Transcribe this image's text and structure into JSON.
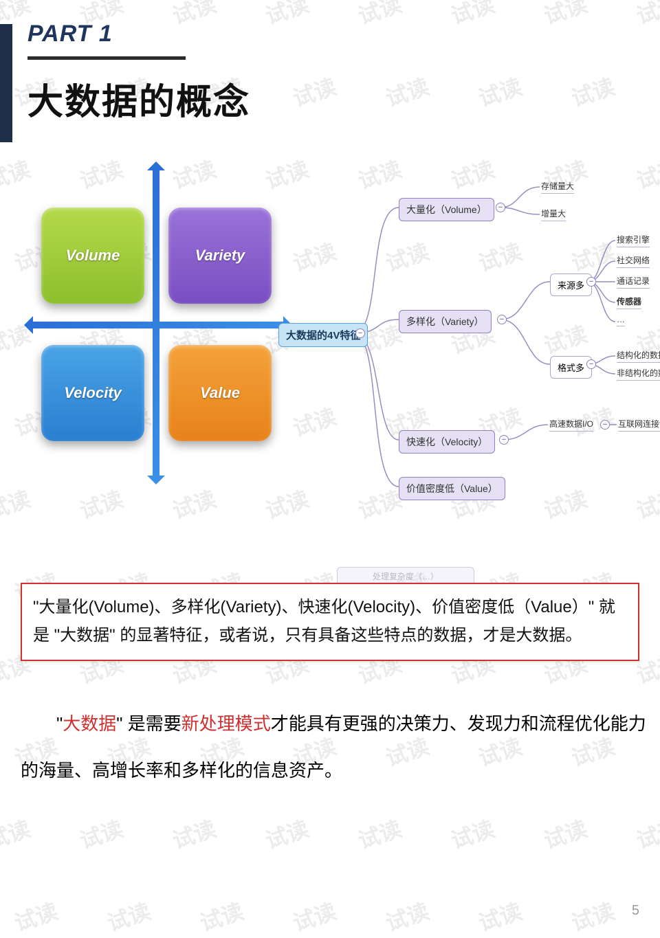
{
  "watermark_text": "试读",
  "header": {
    "part": "PART 1",
    "title": "大数据的概念",
    "bar_color": "#1f2f4a",
    "underline_color": "#2b2b2b"
  },
  "quadrant": {
    "axis_color": "#2a6fd6",
    "boxes": [
      {
        "label": "Volume",
        "pos": "q1",
        "bg_from": "#b5d94a",
        "bg_to": "#8cbf2e"
      },
      {
        "label": "Variety",
        "pos": "q2",
        "bg_from": "#9a72d8",
        "bg_to": "#7a4ec2"
      },
      {
        "label": "Velocity",
        "pos": "q3",
        "bg_from": "#4aa3e6",
        "bg_to": "#2a7fd0"
      },
      {
        "label": "Value",
        "pos": "q4",
        "bg_from": "#f4a23a",
        "bg_to": "#e8821a"
      }
    ]
  },
  "mindmap": {
    "root": "大数据的4V特征",
    "root_bg": "#c7e3f6",
    "root_border": "#5aa0d8",
    "node_bg": "#e5e0f4",
    "node_border": "#9080c0",
    "line_color": "#9a8cc0",
    "level1": [
      {
        "label": "大量化（Volume）",
        "children_l2": [],
        "leaves": [
          "存储量大",
          "增量大"
        ]
      },
      {
        "label": "多样化（Variety）",
        "children_l2": [
          {
            "label": "来源多",
            "leaves": [
              "搜索引擎",
              "社交网络",
              "通话记录",
              "传感器",
              "…"
            ]
          },
          {
            "label": "格式多",
            "leaves": [
              "结构化的数据",
              "非结构化的数据"
            ]
          }
        ],
        "leaves": []
      },
      {
        "label": "快速化（Velocity）",
        "children_l2": [
          {
            "label": "高速数据I/O",
            "leaves": [
              "互联网连接设备数量增长"
            ]
          }
        ],
        "leaves": []
      },
      {
        "label": "价值密度低（Value）",
        "children_l2": [],
        "leaves": []
      }
    ],
    "ghost_label": "处理复杂度（…）"
  },
  "callout": {
    "text": "\"大量化(Volume)、多样化(Variety)、快速化(Velocity)、价值密度低（Value）\" 就是 \"大数据\" 的显著特征，或者说，只有具备这些特点的数据，才是大数据。",
    "border_color": "#d03030"
  },
  "paragraph": {
    "pre": "\"",
    "hl1": "大数据",
    "mid1": "\" 是需要",
    "hl2": "新处理模式",
    "post": "才能具有更强的决策力、发现力和流程优化能力的海量、高增长率和多样化的信息资产。"
  },
  "page_number": "5"
}
